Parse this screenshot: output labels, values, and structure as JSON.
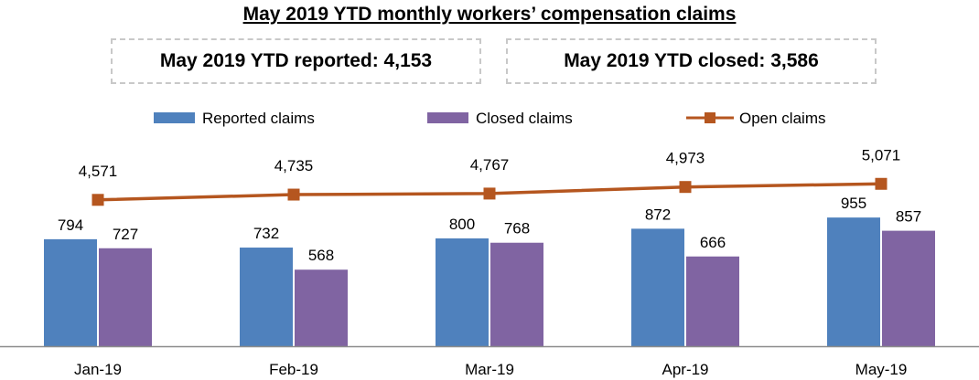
{
  "summary": {
    "title": "May 2019 YTD monthly workers’ compensation claims",
    "reported_text": "May 2019 YTD reported: 4,153",
    "closed_text": "May 2019 YTD closed: 3,586"
  },
  "colors": {
    "reported": "#4F81BD",
    "closed": "#8064A2",
    "open": "#B5561F"
  },
  "chart_data": {
    "type": "bar",
    "title": "May 2019 YTD monthly workers’ compensation claims",
    "categories": [
      "Jan-19",
      "Feb-19",
      "Mar-19",
      "Apr-19",
      "May-19"
    ],
    "series": [
      {
        "name": "Reported claims",
        "type": "bar",
        "values": [
          794,
          732,
          800,
          872,
          955
        ],
        "labels": [
          "794",
          "732",
          "800",
          "872",
          "955"
        ]
      },
      {
        "name": "Closed claims",
        "type": "bar",
        "values": [
          727,
          568,
          768,
          666,
          857
        ],
        "labels": [
          "727",
          "568",
          "768",
          "666",
          "857"
        ]
      },
      {
        "name": "Open claims",
        "type": "line",
        "values": [
          4571,
          4735,
          4767,
          4973,
          5071
        ],
        "labels": [
          "4,571",
          "4,735",
          "4,767",
          "4,973",
          "5,071"
        ]
      }
    ],
    "bar_axis_range": [
      0,
      1300
    ],
    "line_axis_range": [
      0,
      7000
    ],
    "legend_position": "top",
    "xlabel": "",
    "ylabel": "",
    "grid": false
  }
}
